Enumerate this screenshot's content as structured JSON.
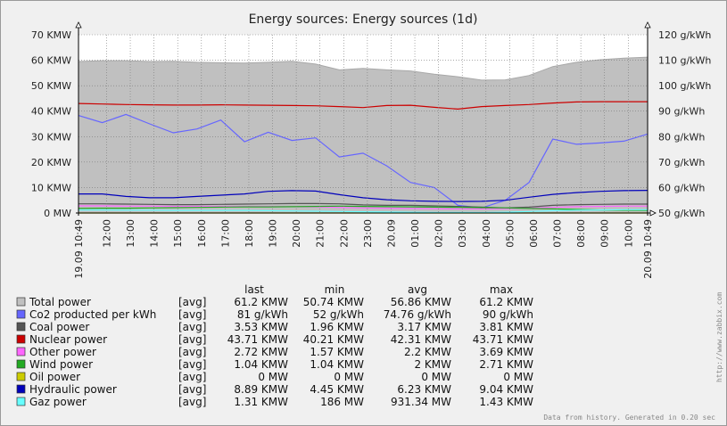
{
  "chart_data": {
    "type": "area",
    "title": "Energy sources: Energy sources  (1d)",
    "grid": true,
    "y_left": {
      "ticks": [
        "70 KMW",
        "60 KMW",
        "50 KMW",
        "40 KMW",
        "30 KMW",
        "20 KMW",
        "10 KMW",
        "0 MW"
      ],
      "range": [
        0,
        70
      ],
      "unit": "KMW"
    },
    "y_right": {
      "ticks": [
        "120 g/kWh",
        "110 g/kWh",
        "100 g/kWh",
        "90 g/kWh",
        "80 g/kWh",
        "70 g/kWh",
        "60 g/kWh",
        "50 g/kWh"
      ],
      "range": [
        50,
        120
      ],
      "unit": "g/kWh"
    },
    "x_start_label": "19.09 10:49",
    "x_end_label": "20.09 10:49",
    "x_ticks": [
      "12:00",
      "13:00",
      "14:00",
      "15:00",
      "16:00",
      "17:00",
      "18:00",
      "19:00",
      "20:00",
      "21:00",
      "22:00",
      "23:00",
      "20.09",
      "01:00",
      "02:00",
      "03:00",
      "04:00",
      "05:00",
      "06:00",
      "07:00",
      "08:00",
      "09:00",
      "10:00"
    ],
    "x_hours": [
      0,
      1,
      2,
      3,
      4,
      5,
      6,
      7,
      8,
      9,
      10,
      11,
      12,
      13,
      14,
      15,
      16,
      17,
      18,
      19,
      20,
      21,
      22,
      23,
      24
    ],
    "series": [
      {
        "name": "Total power",
        "color": "#c0c0c0",
        "axis": "left",
        "fill": true,
        "values": [
          59.5,
          59.8,
          59.8,
          59.5,
          59.6,
          59.2,
          59.0,
          58.9,
          59.2,
          59.6,
          58.5,
          56.2,
          56.8,
          56.2,
          55.8,
          54.5,
          53.5,
          52.2,
          52.3,
          54.0,
          57.5,
          59.2,
          60.2,
          60.8,
          61.2
        ]
      },
      {
        "name": "Co2 producted per kWh",
        "color": "#6666ff",
        "axis": "right",
        "values": [
          88.3,
          85.5,
          88.7,
          85.0,
          81.5,
          83.0,
          86.5,
          78.0,
          81.7,
          78.5,
          79.5,
          72.0,
          73.5,
          68.5,
          62.0,
          60.0,
          53.0,
          52.0,
          55.0,
          62.0,
          79.0,
          77.0,
          77.5,
          78.2,
          81.0
        ]
      },
      {
        "name": "Coal power",
        "color": "#555555",
        "axis": "left",
        "values": [
          3.6,
          3.6,
          3.5,
          3.4,
          3.3,
          3.3,
          3.4,
          3.5,
          3.6,
          3.7,
          3.7,
          3.6,
          3.2,
          3.0,
          3.0,
          2.8,
          2.6,
          2.3,
          2.0,
          2.3,
          3.0,
          3.3,
          3.4,
          3.5,
          3.5
        ]
      },
      {
        "name": "Nuclear power",
        "color": "#cc0000",
        "axis": "left",
        "values": [
          43.0,
          42.8,
          42.6,
          42.5,
          42.4,
          42.4,
          42.5,
          42.4,
          42.3,
          42.2,
          42.1,
          41.8,
          41.4,
          42.2,
          42.3,
          41.5,
          40.8,
          41.8,
          42.2,
          42.6,
          43.2,
          43.6,
          43.7,
          43.7,
          43.7
        ]
      },
      {
        "name": "Other power",
        "color": "#ff66ff",
        "axis": "left",
        "values": [
          2.8,
          2.8,
          2.7,
          2.7,
          2.6,
          2.6,
          2.6,
          2.6,
          2.6,
          2.5,
          2.4,
          2.2,
          2.0,
          1.9,
          1.8,
          1.7,
          1.6,
          1.6,
          1.7,
          1.9,
          2.2,
          2.5,
          2.6,
          2.7,
          2.7
        ]
      },
      {
        "name": "Wind power",
        "color": "#22aa22",
        "axis": "left",
        "values": [
          1.8,
          1.9,
          1.9,
          2.0,
          2.1,
          2.2,
          2.3,
          2.4,
          2.4,
          2.5,
          2.6,
          2.7,
          2.6,
          2.5,
          2.4,
          2.3,
          2.2,
          2.1,
          2.0,
          1.8,
          1.6,
          1.4,
          1.2,
          1.1,
          1.04
        ]
      },
      {
        "name": "Oil power",
        "color": "#cccc00",
        "axis": "left",
        "values": [
          0,
          0,
          0,
          0,
          0,
          0,
          0,
          0,
          0,
          0,
          0,
          0,
          0,
          0,
          0,
          0,
          0,
          0,
          0,
          0,
          0,
          0,
          0,
          0,
          0
        ]
      },
      {
        "name": "Hydraulic power",
        "color": "#0000bb",
        "axis": "left",
        "values": [
          7.5,
          7.5,
          6.5,
          6.0,
          6.0,
          6.5,
          7.0,
          7.5,
          8.5,
          8.8,
          8.6,
          7.2,
          6.0,
          5.2,
          4.8,
          4.6,
          4.5,
          4.6,
          5.0,
          6.2,
          7.3,
          8.0,
          8.5,
          8.8,
          8.9
        ]
      },
      {
        "name": "Gaz power",
        "color": "#66ffff",
        "axis": "left",
        "values": [
          1.2,
          1.2,
          1.1,
          1.1,
          1.0,
          1.0,
          1.0,
          1.0,
          0.9,
          0.8,
          0.7,
          0.6,
          0.5,
          0.4,
          0.3,
          0.25,
          0.2,
          0.19,
          0.3,
          0.6,
          0.9,
          1.1,
          1.2,
          1.3,
          1.31
        ]
      }
    ],
    "legend_columns": [
      "last",
      "min",
      "avg",
      "max"
    ],
    "legend_rows": [
      {
        "name": "Total power",
        "color": "#c0c0c0",
        "func": "[avg]",
        "last": "61.2 KMW",
        "min": "50.74 KMW",
        "avg": "56.86 KMW",
        "max": "61.2 KMW"
      },
      {
        "name": "Co2 producted per kWh",
        "color": "#6666ff",
        "func": "[avg]",
        "last": "81 g/kWh",
        "min": "52 g/kWh",
        "avg": "74.76 g/kWh",
        "max": "90 g/kWh"
      },
      {
        "name": "Coal power",
        "color": "#555555",
        "func": "[avg]",
        "last": "3.53 KMW",
        "min": "1.96 KMW",
        "avg": "3.17 KMW",
        "max": "3.81 KMW"
      },
      {
        "name": "Nuclear power",
        "color": "#cc0000",
        "func": "[avg]",
        "last": "43.71 KMW",
        "min": "40.21 KMW",
        "avg": "42.31 KMW",
        "max": "43.71 KMW"
      },
      {
        "name": "Other power",
        "color": "#ff66ff",
        "func": "[avg]",
        "last": "2.72 KMW",
        "min": "1.57 KMW",
        "avg": "2.2 KMW",
        "max": "3.69 KMW"
      },
      {
        "name": "Wind power",
        "color": "#22aa22",
        "func": "[avg]",
        "last": "1.04 KMW",
        "min": "1.04 KMW",
        "avg": "2 KMW",
        "max": "2.71 KMW"
      },
      {
        "name": "Oil power",
        "color": "#cccc00",
        "func": "[avg]",
        "last": "0 MW",
        "min": "0 MW",
        "avg": "0 MW",
        "max": "0 MW"
      },
      {
        "name": "Hydraulic power",
        "color": "#0000bb",
        "func": "[avg]",
        "last": "8.89 KMW",
        "min": "4.45 KMW",
        "avg": "6.23 KMW",
        "max": "9.04 KMW"
      },
      {
        "name": "Gaz power",
        "color": "#66ffff",
        "func": "[avg]",
        "last": "1.31 KMW",
        "min": "186 MW",
        "avg": "931.34 MW",
        "max": "1.43 KMW"
      }
    ],
    "footer_note": "Data from history. Generated in 0.20 sec",
    "watermark": "http://www.zabbix.com"
  }
}
